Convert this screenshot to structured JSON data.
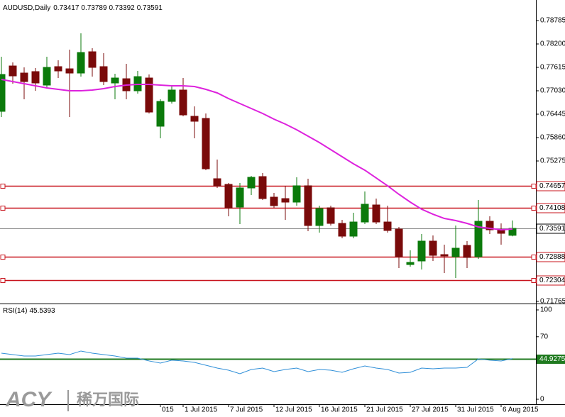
{
  "chart_data": [
    {
      "type": "candlestick",
      "symbol": "AUDUSD,Daily",
      "categories": [
        null,
        null,
        null,
        null,
        null,
        null,
        null,
        null,
        null,
        null,
        null,
        null,
        null,
        null,
        "015",
        null,
        "1 Jul 2015",
        null,
        null,
        null,
        "7 Jul 2015",
        null,
        null,
        null,
        "12 Jul 2015",
        null,
        null,
        null,
        "16 Jul 2015",
        null,
        null,
        null,
        "21 Jul 2015",
        null,
        null,
        null,
        "27 Jul 2015",
        null,
        null,
        null,
        "31 Jul 2015",
        null,
        null,
        null,
        "6 Aug 2015",
        null
      ],
      "open": [
        0.76516,
        0.7765,
        0.77473,
        0.77509,
        0.77172,
        0.77633,
        0.77579,
        0.77473,
        0.78005,
        0.77633,
        0.77225,
        0.77331,
        0.7703,
        0.77349,
        0.76144,
        0.76764,
        0.77048,
        0.76392,
        0.76339,
        0.74832,
        0.7469,
        0.74123,
        0.74601,
        0.74885,
        0.74371,
        0.74335,
        0.74247,
        0.74655,
        0.73662,
        0.74105,
        0.73715,
        0.73396,
        0.7375,
        0.74176,
        0.7375,
        0.73573,
        0.72687,
        0.72776,
        0.73272,
        0.72935,
        0.72882,
        0.73165,
        0.72882,
        0.73768,
        0.73555,
        0.73417
      ],
      "high": [
        0.77881,
        0.77739,
        0.77615,
        0.77597,
        0.77881,
        0.77792,
        0.78058,
        0.78466,
        0.78094,
        0.77969,
        0.77455,
        0.77704,
        0.77526,
        0.77438,
        0.76817,
        0.77136,
        0.77349,
        0.7664,
        0.76463,
        0.7531,
        0.74725,
        0.74725,
        0.74903,
        0.74974,
        0.74477,
        0.74655,
        0.74867,
        0.74832,
        0.74158,
        0.74158,
        0.73804,
        0.73981,
        0.74513,
        0.74335,
        0.74158,
        0.73626,
        0.73041,
        0.73449,
        0.73414,
        0.73183,
        0.73662,
        0.73272,
        0.743,
        0.73892,
        0.73715,
        0.73789
      ],
      "low": [
        0.76374,
        0.77207,
        0.76817,
        0.7703,
        0.77083,
        0.77349,
        0.76374,
        0.77384,
        0.77384,
        0.77172,
        0.76817,
        0.76817,
        0.76959,
        0.76463,
        0.75842,
        0.76711,
        0.76392,
        0.75842,
        0.75045,
        0.74601,
        0.73892,
        0.73697,
        0.74424,
        0.743,
        0.74105,
        0.73804,
        0.74158,
        0.7352,
        0.73485,
        0.73662,
        0.73343,
        0.73343,
        0.73697,
        0.73697,
        0.73485,
        0.72598,
        0.72634,
        0.72563,
        0.72776,
        0.72474,
        0.7235,
        0.72598,
        0.72829,
        0.73449,
        0.73183,
        0.73392
      ],
      "close": [
        0.77438,
        0.77402,
        0.7726,
        0.77225,
        0.77615,
        0.77526,
        0.77473,
        0.77987,
        0.77615,
        0.7726,
        0.77349,
        0.7703,
        0.77384,
        0.76498,
        0.76764,
        0.77048,
        0.76427,
        0.76268,
        0.7508,
        0.74655,
        0.74105,
        0.74601,
        0.74867,
        0.74335,
        0.74158,
        0.74247,
        0.74655,
        0.73662,
        0.74087,
        0.73715,
        0.73396,
        0.7375,
        0.74194,
        0.7375,
        0.73538,
        0.72882,
        0.7274,
        0.73272,
        0.72917,
        0.729,
        0.73095,
        0.72864,
        0.73768,
        0.73555,
        0.73467,
        0.73591
      ],
      "up_color": "#0b7a0b",
      "down_color": "#7a0a0a",
      "ma": {
        "color": "#dd22dd",
        "values": [
          0.77314,
          0.7726,
          0.77207,
          0.77154,
          0.77101,
          0.77065,
          0.7703,
          0.7703,
          0.77048,
          0.77083,
          0.77136,
          0.77172,
          0.77189,
          0.77189,
          0.77172,
          0.77154,
          0.77154,
          0.77136,
          0.77065,
          0.76977,
          0.76835,
          0.76711,
          0.76587,
          0.76463,
          0.76321,
          0.76197,
          0.76055,
          0.75895,
          0.75736,
          0.75559,
          0.75381,
          0.75204,
          0.75045,
          0.7485,
          0.74655,
          0.74442,
          0.74247,
          0.7407,
          0.73945,
          0.73839,
          0.73786,
          0.73715,
          0.73626,
          0.73591,
          0.73555,
          0.73573
        ]
      },
      "levels": {
        "color": "#c8141e",
        "values": [
          0.74657,
          0.74108,
          0.72888,
          0.72304
        ]
      },
      "ylim": [
        0.71712,
        0.79299
      ],
      "yticks": [
        0.78785,
        {
          "value": 0.782,
          "label": "0.78200"
        },
        0.77615,
        {
          "value": 0.7703,
          "label": "0.77030"
        },
        0.76445,
        {
          "value": 0.7586,
          "label": "0.75860"
        },
        0.75275,
        0.71765
      ]
    },
    {
      "type": "line",
      "title": "RSI(14)",
      "color": "#2f8fd8",
      "values": [
        51.6,
        50.0,
        48.4,
        48.4,
        50.0,
        51.6,
        50.0,
        54.0,
        51.6,
        50.0,
        48.4,
        46.0,
        46.0,
        42.9,
        40.5,
        43.7,
        42.9,
        41.3,
        38.1,
        34.9,
        32.5,
        28.6,
        33.3,
        34.9,
        31.0,
        33.3,
        34.9,
        31.0,
        33.3,
        32.5,
        30.2,
        34.1,
        37.3,
        34.9,
        33.3,
        29.4,
        30.2,
        34.9,
        34.1,
        34.9,
        34.9,
        35.7,
        45.2,
        43.7,
        42.9,
        45.5393
      ],
      "level": 44.9275,
      "level_color": "#1f7a1f",
      "ylim": [
        -5.56,
        105.56
      ],
      "yticks": [
        0,
        70,
        100
      ]
    }
  ],
  "logo": {
    "brand": "ACY",
    "name": "稀万国际"
  }
}
